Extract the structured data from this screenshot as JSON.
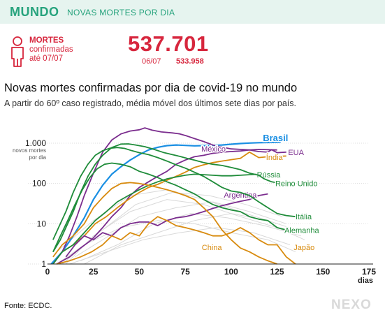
{
  "header": {
    "region": "MUNDO",
    "section": "NOVAS MORTES POR DIA"
  },
  "summary": {
    "label_line1": "MORTES",
    "label_line2": "confirmadas",
    "label_line3": "até 07/07",
    "total": "537.701",
    "previous_date": "06/07",
    "previous_total": "533.958",
    "accent_color": "#d7263d"
  },
  "title": "Novas mortes confirmadas por dia de covid-19 no mundo",
  "subtitle": "A partir do 60º caso registrado, média móvel dos últimos sete dias por país.",
  "source": "Fonte: ECDC.",
  "logo": "NEXO",
  "icons": {
    "person": "person-icon"
  },
  "chart_data": {
    "type": "line",
    "y_scale": "log",
    "xlim": [
      0,
      175
    ],
    "ylim": [
      1,
      3000
    ],
    "x_ticks": [
      0,
      25,
      50,
      75,
      100,
      125,
      150,
      175
    ],
    "x_unit_label": "dias",
    "y_ticks": [
      {
        "value": 1,
        "label": "1"
      },
      {
        "value": 10,
        "label": "10"
      },
      {
        "value": 100,
        "label": "100"
      },
      {
        "value": 1000,
        "label": "1.000"
      }
    ],
    "y_axis_caption": [
      "novos mortes",
      "por dia"
    ],
    "grid": true,
    "series": [
      {
        "name": "Brasil",
        "color": "#1a8fe3",
        "points": [
          [
            2,
            1
          ],
          [
            8,
            2
          ],
          [
            14,
            5
          ],
          [
            20,
            14
          ],
          [
            25,
            40
          ],
          [
            30,
            90
          ],
          [
            35,
            170
          ],
          [
            40,
            260
          ],
          [
            45,
            380
          ],
          [
            50,
            520
          ],
          [
            55,
            680
          ],
          [
            60,
            790
          ],
          [
            65,
            870
          ],
          [
            70,
            900
          ],
          [
            75,
            880
          ],
          [
            80,
            860
          ],
          [
            85,
            870
          ],
          [
            90,
            880
          ],
          [
            95,
            900
          ],
          [
            100,
            940
          ],
          [
            105,
            980
          ],
          [
            110,
            1010
          ],
          [
            115,
            1030
          ],
          [
            120,
            1040
          ],
          [
            125,
            1050
          ],
          [
            127,
            1060
          ]
        ]
      },
      {
        "name": "EUA",
        "color": "#7b2d8e",
        "points": [
          [
            3,
            1
          ],
          [
            8,
            2
          ],
          [
            12,
            5
          ],
          [
            16,
            15
          ],
          [
            20,
            50
          ],
          [
            25,
            180
          ],
          [
            30,
            600
          ],
          [
            35,
            1200
          ],
          [
            40,
            1700
          ],
          [
            45,
            2000
          ],
          [
            50,
            2150
          ],
          [
            53,
            2400
          ],
          [
            57,
            2100
          ],
          [
            62,
            1900
          ],
          [
            68,
            1800
          ],
          [
            72,
            1700
          ],
          [
            76,
            1500
          ],
          [
            80,
            1300
          ],
          [
            85,
            1100
          ],
          [
            90,
            900
          ],
          [
            95,
            800
          ],
          [
            100,
            720
          ],
          [
            105,
            700
          ],
          [
            110,
            680
          ],
          [
            115,
            620
          ],
          [
            120,
            600
          ],
          [
            122,
            690
          ],
          [
            125,
            580
          ],
          [
            130,
            600
          ]
        ]
      },
      {
        "name": "México",
        "color": "#7b2d8e",
        "points": [
          [
            5,
            1
          ],
          [
            12,
            1.5
          ],
          [
            18,
            2.5
          ],
          [
            24,
            4
          ],
          [
            30,
            8
          ],
          [
            35,
            15
          ],
          [
            40,
            25
          ],
          [
            45,
            50
          ],
          [
            50,
            80
          ],
          [
            55,
            110
          ],
          [
            60,
            150
          ],
          [
            65,
            200
          ],
          [
            70,
            300
          ],
          [
            75,
            380
          ],
          [
            80,
            460
          ],
          [
            85,
            500
          ],
          [
            90,
            560
          ],
          [
            95,
            600
          ],
          [
            100,
            620
          ],
          [
            105,
            640
          ],
          [
            110,
            680
          ],
          [
            115,
            700
          ],
          [
            120,
            690
          ],
          [
            125,
            680
          ]
        ]
      },
      {
        "name": "Índia",
        "color": "#d88b0f",
        "points": [
          [
            8,
            2
          ],
          [
            14,
            3
          ],
          [
            20,
            5
          ],
          [
            26,
            10
          ],
          [
            32,
            15
          ],
          [
            38,
            25
          ],
          [
            44,
            40
          ],
          [
            50,
            60
          ],
          [
            55,
            80
          ],
          [
            60,
            95
          ],
          [
            65,
            120
          ],
          [
            70,
            150
          ],
          [
            75,
            190
          ],
          [
            80,
            250
          ],
          [
            85,
            290
          ],
          [
            90,
            330
          ],
          [
            95,
            360
          ],
          [
            100,
            390
          ],
          [
            105,
            420
          ],
          [
            110,
            600
          ],
          [
            115,
            440
          ],
          [
            120,
            460
          ],
          [
            125,
            470
          ],
          [
            130,
            480
          ]
        ]
      },
      {
        "name": "Rússia",
        "color": "#1f8c3a",
        "points": [
          [
            3,
            1
          ],
          [
            8,
            2
          ],
          [
            14,
            3
          ],
          [
            20,
            6
          ],
          [
            26,
            12
          ],
          [
            32,
            20
          ],
          [
            38,
            35
          ],
          [
            44,
            50
          ],
          [
            50,
            70
          ],
          [
            55,
            90
          ],
          [
            60,
            110
          ],
          [
            65,
            130
          ],
          [
            70,
            145
          ],
          [
            75,
            160
          ],
          [
            80,
            170
          ],
          [
            85,
            165
          ],
          [
            90,
            160
          ],
          [
            95,
            155
          ],
          [
            100,
            155
          ],
          [
            105,
            160
          ],
          [
            110,
            165
          ],
          [
            115,
            170
          ],
          [
            120,
            165
          ],
          [
            125,
            160
          ]
        ]
      },
      {
        "name": "Reino Unido",
        "color": "#1f8c3a",
        "points": [
          [
            3,
            2
          ],
          [
            7,
            4
          ],
          [
            10,
            8
          ],
          [
            14,
            20
          ],
          [
            18,
            60
          ],
          [
            22,
            150
          ],
          [
            26,
            300
          ],
          [
            30,
            500
          ],
          [
            35,
            780
          ],
          [
            40,
            950
          ],
          [
            44,
            960
          ],
          [
            48,
            900
          ],
          [
            53,
            820
          ],
          [
            58,
            700
          ],
          [
            63,
            590
          ],
          [
            68,
            520
          ],
          [
            72,
            470
          ],
          [
            76,
            420
          ],
          [
            80,
            380
          ],
          [
            85,
            330
          ],
          [
            90,
            300
          ],
          [
            95,
            280
          ],
          [
            100,
            250
          ],
          [
            105,
            220
          ],
          [
            110,
            180
          ],
          [
            115,
            160
          ],
          [
            118,
            130
          ],
          [
            122,
            110
          ],
          [
            127,
            100
          ],
          [
            130,
            95
          ],
          [
            135,
            90
          ]
        ]
      },
      {
        "name": "Argentina",
        "color": "#7b2d8e",
        "points": [
          [
            10,
            1.5
          ],
          [
            15,
            3
          ],
          [
            20,
            5
          ],
          [
            25,
            4
          ],
          [
            30,
            6
          ],
          [
            35,
            5
          ],
          [
            40,
            8
          ],
          [
            45,
            10
          ],
          [
            50,
            11
          ],
          [
            55,
            11
          ],
          [
            60,
            9
          ],
          [
            65,
            12
          ],
          [
            70,
            14
          ],
          [
            75,
            15
          ],
          [
            80,
            17
          ],
          [
            85,
            20
          ],
          [
            90,
            24
          ],
          [
            95,
            28
          ],
          [
            100,
            32
          ],
          [
            105,
            36
          ],
          [
            110,
            40
          ],
          [
            115,
            50
          ],
          [
            120,
            55
          ]
        ]
      },
      {
        "name": "Itália",
        "color": "#1f8c3a",
        "points": [
          [
            3,
            4
          ],
          [
            6,
            8
          ],
          [
            10,
            20
          ],
          [
            14,
            60
          ],
          [
            18,
            150
          ],
          [
            22,
            300
          ],
          [
            26,
            500
          ],
          [
            30,
            650
          ],
          [
            34,
            750
          ],
          [
            38,
            780
          ],
          [
            42,
            740
          ],
          [
            46,
            650
          ],
          [
            50,
            580
          ],
          [
            55,
            520
          ],
          [
            60,
            440
          ],
          [
            65,
            360
          ],
          [
            70,
            290
          ],
          [
            75,
            240
          ],
          [
            80,
            190
          ],
          [
            85,
            150
          ],
          [
            90,
            110
          ],
          [
            95,
            80
          ],
          [
            100,
            65
          ],
          [
            105,
            60
          ],
          [
            110,
            50
          ],
          [
            115,
            35
          ],
          [
            120,
            25
          ],
          [
            125,
            18
          ],
          [
            130,
            16
          ],
          [
            135,
            15
          ]
        ]
      },
      {
        "name": "Alemanha",
        "color": "#1f8c3a",
        "points": [
          [
            3,
            2
          ],
          [
            7,
            5
          ],
          [
            11,
            12
          ],
          [
            15,
            30
          ],
          [
            19,
            70
          ],
          [
            23,
            140
          ],
          [
            27,
            230
          ],
          [
            31,
            300
          ],
          [
            35,
            320
          ],
          [
            40,
            300
          ],
          [
            45,
            260
          ],
          [
            50,
            200
          ],
          [
            55,
            170
          ],
          [
            60,
            140
          ],
          [
            65,
            110
          ],
          [
            70,
            90
          ],
          [
            75,
            70
          ],
          [
            80,
            55
          ],
          [
            85,
            40
          ],
          [
            90,
            30
          ],
          [
            95,
            25
          ],
          [
            100,
            22
          ],
          [
            105,
            20
          ],
          [
            110,
            15
          ],
          [
            115,
            13
          ],
          [
            120,
            12
          ],
          [
            125,
            8
          ],
          [
            130,
            7
          ],
          [
            135,
            7
          ]
        ]
      },
      {
        "name": "China",
        "color": "#d88b0f",
        "points": [
          [
            3,
            1.5
          ],
          [
            8,
            3
          ],
          [
            14,
            5
          ],
          [
            20,
            10
          ],
          [
            25,
            25
          ],
          [
            30,
            45
          ],
          [
            35,
            75
          ],
          [
            40,
            100
          ],
          [
            45,
            105
          ],
          [
            50,
            100
          ],
          [
            55,
            90
          ],
          [
            60,
            80
          ],
          [
            65,
            70
          ],
          [
            70,
            60
          ],
          [
            75,
            50
          ],
          [
            80,
            40
          ],
          [
            85,
            25
          ],
          [
            90,
            15
          ],
          [
            95,
            7
          ],
          [
            100,
            4
          ],
          [
            105,
            2.5
          ],
          [
            110,
            2
          ],
          [
            115,
            1.5
          ],
          [
            120,
            1.2
          ],
          [
            125,
            1
          ]
        ]
      },
      {
        "name": "Japão",
        "color": "#d88b0f",
        "points": [
          [
            5,
            1
          ],
          [
            12,
            1.2
          ],
          [
            18,
            1.5
          ],
          [
            24,
            2
          ],
          [
            30,
            3
          ],
          [
            35,
            5
          ],
          [
            40,
            4
          ],
          [
            45,
            6
          ],
          [
            50,
            5
          ],
          [
            55,
            10
          ],
          [
            60,
            15
          ],
          [
            65,
            12
          ],
          [
            70,
            9
          ],
          [
            75,
            8
          ],
          [
            80,
            7
          ],
          [
            85,
            6
          ],
          [
            90,
            5
          ],
          [
            95,
            5
          ],
          [
            100,
            6
          ],
          [
            105,
            8
          ],
          [
            110,
            6
          ],
          [
            115,
            4
          ],
          [
            120,
            3
          ],
          [
            125,
            3
          ],
          [
            130,
            1.5
          ],
          [
            135,
            1
          ]
        ]
      }
    ]
  }
}
